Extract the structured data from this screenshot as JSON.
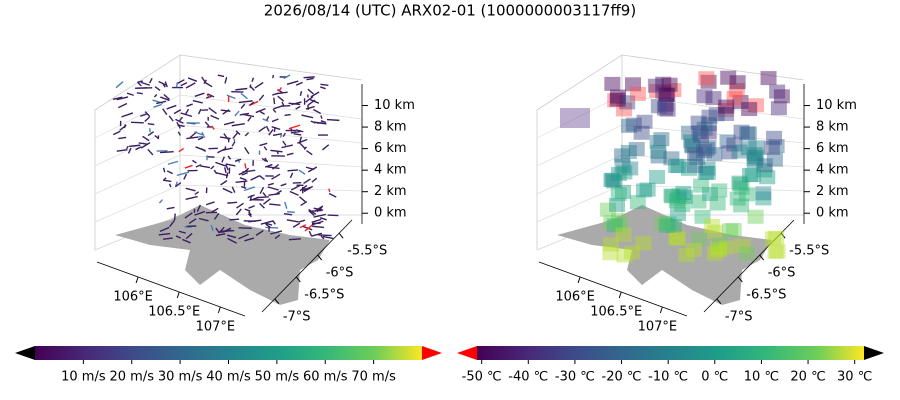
{
  "title": "2026/08/14 (UTC) ARX02-01 (1000000003117ff9)",
  "chart_data": [
    {
      "type": "wind-3d",
      "zlim": [
        -1,
        12
      ],
      "zticks": [
        {
          "value": 0,
          "label": "0 km"
        },
        {
          "value": 2,
          "label": "2 km"
        },
        {
          "value": 4,
          "label": "4 km"
        },
        {
          "value": 6,
          "label": "6 km"
        },
        {
          "value": 8,
          "label": "8 km"
        },
        {
          "value": 10,
          "label": "10 km"
        }
      ],
      "xlim": [
        105.5,
        107.3
      ],
      "xticks": [
        {
          "value": 106,
          "label": "106°E"
        },
        {
          "value": 106.5,
          "label": "106.5°E"
        },
        {
          "value": 107,
          "label": "107°E"
        }
      ],
      "ylim": [
        -7.3,
        -5.2
      ],
      "yticks": [
        {
          "value": -7,
          "label": "-7°S"
        },
        {
          "value": -6.5,
          "label": "-6.5°S"
        },
        {
          "value": -6,
          "label": "-6°S"
        },
        {
          "value": -5.5,
          "label": "-5.5°S"
        }
      ],
      "colorbar": {
        "lim": [
          0,
          80
        ],
        "ticks": [
          {
            "value": 10,
            "label": "10 m/s"
          },
          {
            "value": 20,
            "label": "20 m/s"
          },
          {
            "value": 30,
            "label": "30 m/s"
          },
          {
            "value": 40,
            "label": "40 m/s"
          },
          {
            "value": 50,
            "label": "50 m/s"
          },
          {
            "value": 60,
            "label": "60 m/s"
          },
          {
            "value": 70,
            "label": "70 m/s"
          }
        ],
        "under_color": "#000000",
        "over_color": "#ff0000"
      }
    },
    {
      "type": "temperature-voxel",
      "zlim": [
        -1,
        12
      ],
      "zticks": [
        {
          "value": 0,
          "label": "0 km"
        },
        {
          "value": 2,
          "label": "2 km"
        },
        {
          "value": 4,
          "label": "4 km"
        },
        {
          "value": 6,
          "label": "6 km"
        },
        {
          "value": 8,
          "label": "8 km"
        },
        {
          "value": 10,
          "label": "10 km"
        }
      ],
      "xlim": [
        105.5,
        107.3
      ],
      "xticks": [
        {
          "value": 106,
          "label": "106°E"
        },
        {
          "value": 106.5,
          "label": "106.5°E"
        },
        {
          "value": 107,
          "label": "107°E"
        }
      ],
      "ylim": [
        -7.3,
        -5.2
      ],
      "yticks": [
        {
          "value": -7,
          "label": "-7°S"
        },
        {
          "value": -6.5,
          "label": "-6.5°S"
        },
        {
          "value": -6,
          "label": "-6°S"
        },
        {
          "value": -5.5,
          "label": "-5.5°S"
        }
      ],
      "colorbar": {
        "lim": [
          -51,
          32
        ],
        "ticks": [
          {
            "value": -50,
            "label": "-50 ℃"
          },
          {
            "value": -40,
            "label": "-40 ℃"
          },
          {
            "value": -30,
            "label": "-30 ℃"
          },
          {
            "value": -20,
            "label": "-20 ℃"
          },
          {
            "value": -10,
            "label": "-10 ℃"
          },
          {
            "value": 0,
            "label": "0 ℃"
          },
          {
            "value": 10,
            "label": "10 ℃"
          },
          {
            "value": 20,
            "label": "20 ℃"
          },
          {
            "value": 30,
            "label": "30 ℃"
          }
        ],
        "under_color": "#ff0000",
        "over_color": "#000000"
      }
    }
  ]
}
